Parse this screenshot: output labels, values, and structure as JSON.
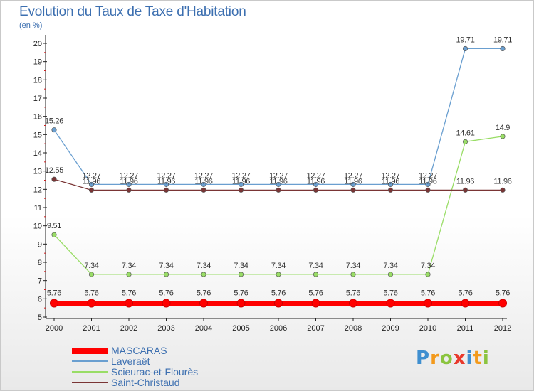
{
  "title": "Evolution du Taux de Taxe d'Habitation",
  "unit": "(en %)",
  "logo": {
    "text": "Proxiti",
    "letters": [
      {
        "ch": "P",
        "color": "#3f8fd0"
      },
      {
        "ch": "r",
        "color": "#f39a1c"
      },
      {
        "ch": "o",
        "color": "#8bc43f"
      },
      {
        "ch": "x",
        "color": "#e8392c"
      },
      {
        "ch": "i",
        "color": "#3f8fd0"
      },
      {
        "ch": "t",
        "color": "#f39a1c"
      },
      {
        "ch": "i",
        "color": "#8bc43f"
      }
    ]
  },
  "chart_data": {
    "type": "line",
    "categories": [
      "2000",
      "2001",
      "2002",
      "2003",
      "2004",
      "2005",
      "2006",
      "2007",
      "2008",
      "2009",
      "2010",
      "2011",
      "2012"
    ],
    "ylim": [
      5,
      20
    ],
    "yticks": [
      5,
      6,
      7,
      8,
      9,
      10,
      11,
      12,
      13,
      14,
      15,
      16,
      17,
      18,
      19,
      20
    ],
    "grid": false,
    "legend_position": "bottom-left",
    "series": [
      {
        "name": "MASCARAS",
        "color": "#ff0000",
        "values": [
          5.76,
          5.76,
          5.76,
          5.76,
          5.76,
          5.76,
          5.76,
          5.76,
          5.76,
          5.76,
          5.76,
          5.76,
          5.76
        ],
        "labels": [
          "5.76",
          "5.76",
          "5.76",
          "5.76",
          "5.76",
          "5.76",
          "5.76",
          "5.76",
          "5.76",
          "5.76",
          "5.76",
          "5.76",
          "5.76"
        ]
      },
      {
        "name": "Laveraët",
        "color": "#6a9fd0",
        "values": [
          15.26,
          12.27,
          12.27,
          12.27,
          12.27,
          12.27,
          12.27,
          12.27,
          12.27,
          12.27,
          12.27,
          19.71,
          19.71
        ],
        "labels": [
          "15.26",
          "12.27",
          "12.27",
          "12.27",
          "12.27",
          "12.27",
          "12.27",
          "12.27",
          "12.27",
          "12.27",
          "12.27",
          "19.71",
          "19.71"
        ]
      },
      {
        "name": "Scieurac-et-Flourès",
        "color": "#99dd66",
        "values": [
          9.51,
          7.34,
          7.34,
          7.34,
          7.34,
          7.34,
          7.34,
          7.34,
          7.34,
          7.34,
          7.34,
          14.61,
          14.9
        ],
        "labels": [
          "9.51",
          "7.34",
          "7.34",
          "7.34",
          "7.34",
          "7.34",
          "7.34",
          "7.34",
          "7.34",
          "7.34",
          "7.34",
          "14.61",
          "14.9"
        ]
      },
      {
        "name": "Saint-Christaud",
        "color": "#7a3535",
        "values": [
          12.55,
          11.96,
          11.96,
          11.96,
          11.96,
          11.96,
          11.96,
          11.96,
          11.96,
          11.96,
          11.96,
          11.96,
          11.96
        ],
        "labels": [
          "12.55",
          "11.96",
          "11.96",
          "11.96",
          "11.96",
          "11.96",
          "11.96",
          "11.96",
          "11.96",
          "11.96",
          "11.96",
          "11.96",
          "11.96"
        ]
      }
    ]
  }
}
